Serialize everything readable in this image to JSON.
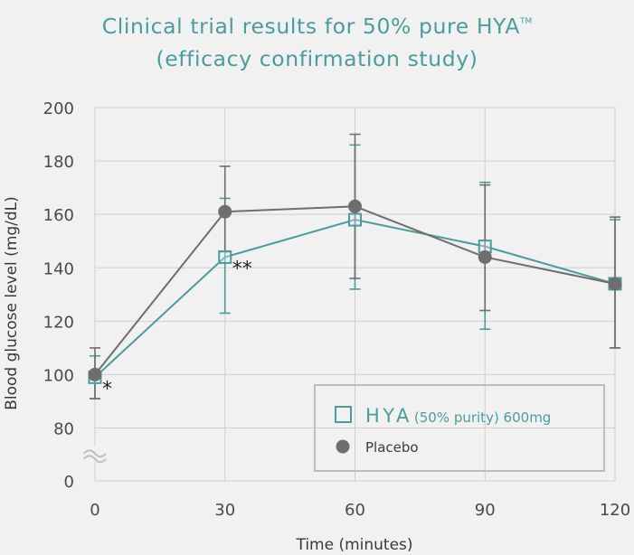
{
  "title": {
    "line1": "Clinical trial results for 50% pure HYA",
    "line1_mark": "TM",
    "line2": "(efficacy confirmation study)"
  },
  "colors": {
    "hya": "#4b9c9c",
    "placebo": "#6e6e6e",
    "grid": "#cfcfcf",
    "background": "#f1f1f1",
    "title": "#4b9c9c"
  },
  "chart_data": {
    "type": "line",
    "xlabel": "Time (minutes)",
    "ylabel": "Blood glucose level (mg/dL)",
    "x": [
      0,
      30,
      60,
      90,
      120
    ],
    "xticks": [
      "0",
      "30",
      "60",
      "90",
      "120"
    ],
    "yticks": [
      "0",
      "80",
      "100",
      "120",
      "140",
      "160",
      "180",
      "200"
    ],
    "ylim": [
      80,
      200
    ],
    "y_axis_break": true,
    "grid": true,
    "legend_position": "bottom-right",
    "series": [
      {
        "name": "HYA",
        "name_detail": "(50% purity) 600mg",
        "marker": "open-square",
        "color": "#4b9c9c",
        "values": [
          99,
          144,
          158,
          148,
          134
        ],
        "error": [
          [
            91,
            107
          ],
          [
            123,
            166
          ],
          [
            132,
            186
          ],
          [
            117,
            172
          ],
          [
            110,
            158
          ]
        ]
      },
      {
        "name": "Placebo",
        "marker": "filled-circle",
        "color": "#6e6e6e",
        "values": [
          100,
          161,
          163,
          144,
          134
        ],
        "error": [
          [
            91,
            110
          ],
          [
            146,
            178
          ],
          [
            136,
            190
          ],
          [
            124,
            171
          ],
          [
            110,
            159
          ]
        ]
      }
    ],
    "annotations": [
      {
        "text": "*",
        "x": 0,
        "y": 99
      },
      {
        "text": "**",
        "x": 30,
        "y": 144
      }
    ]
  }
}
